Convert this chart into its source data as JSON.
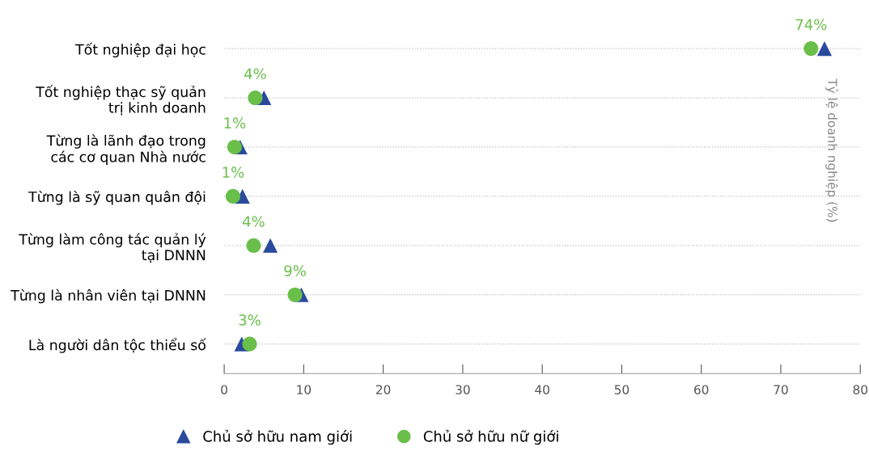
{
  "chart_data": {
    "type": "scatter",
    "orientation": "horizontal",
    "y2label": "Tỷ lệ doanh nghiệp (%)",
    "categories": [
      "Tốt nghiệp đại học",
      "Tốt nghiệp thạc sỹ quản\ntrị kinh doanh",
      "Từng là lãnh đạo trong\ncác cơ quan Nhà nước",
      "Từng là sỹ quan quân đội",
      "Từng làm công tác quản lý\ntại DNNN",
      "Từng là nhân viên tại DNNN",
      "Là người dân tộc thiểu số"
    ],
    "series": [
      {
        "name": "Chủ sở hữu nam giới",
        "color": "#2a4a9c",
        "marker": "triangle",
        "values": [
          75.5,
          5.0,
          2.0,
          2.3,
          5.8,
          9.7,
          2.2
        ]
      },
      {
        "name": "Chủ sở hữu nữ giới",
        "color": "#6abf4b",
        "marker": "circle",
        "values": [
          73.8,
          3.9,
          1.3,
          1.1,
          3.7,
          8.9,
          3.2
        ],
        "value_labels": [
          "74%",
          "4%",
          "1%",
          "1%",
          "4%",
          "9%",
          "3%"
        ]
      }
    ],
    "xlim": [
      0,
      80
    ],
    "xticks": [
      0,
      10,
      20,
      30,
      40,
      50,
      60,
      70,
      80
    ],
    "grid": "y",
    "line_style": "dotted",
    "legend": "bottom"
  }
}
